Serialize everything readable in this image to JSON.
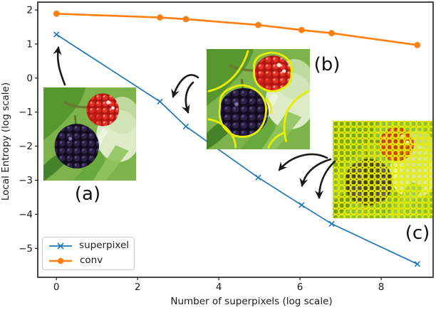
{
  "figure": {
    "background": "#ffffff"
  },
  "chart_data": {
    "type": "line",
    "title": "",
    "xlabel": "Number of superpixels (log scale)",
    "ylabel": "Local Entropy (log scale)",
    "xlim": [
      -0.46,
      9.28
    ],
    "ylim": [
      -5.85,
      2.23
    ],
    "xticks": [
      0,
      2,
      4,
      6,
      8
    ],
    "yticks": [
      2,
      1,
      0,
      -1,
      -2,
      -3,
      -4,
      -5
    ],
    "grid": false,
    "legend_position": "lower-left",
    "x": [
      0,
      2.55,
      3.19,
      4.97,
      6.04,
      6.78,
      8.89
    ],
    "series": [
      {
        "name": "superpixel",
        "color": "#1f77b4",
        "marker": "x",
        "line_width": 1.7,
        "values": [
          1.28,
          -0.69,
          -1.42,
          -2.92,
          -3.73,
          -4.28,
          -5.46
        ]
      },
      {
        "name": "conv",
        "color": "#ff7f0e",
        "marker": "circle",
        "line_width": 2.6,
        "values": [
          1.89,
          1.78,
          1.73,
          1.56,
          1.41,
          1.32,
          0.97
        ]
      }
    ]
  },
  "annotations": {
    "image_labels": [
      {
        "label": "(a)",
        "description": "original photo of blackberry and raspberry"
      },
      {
        "label": "(b)",
        "description": "photo with coarse superpixel boundaries"
      },
      {
        "label": "(c)",
        "description": "photo with dense superpixel over-segmentation"
      }
    ]
  },
  "colors": {
    "text": "#1a1a1a",
    "spine": "#1a1a1a",
    "arrow": "#1a1a1a",
    "boundary_yellow": "#e8ee00"
  }
}
